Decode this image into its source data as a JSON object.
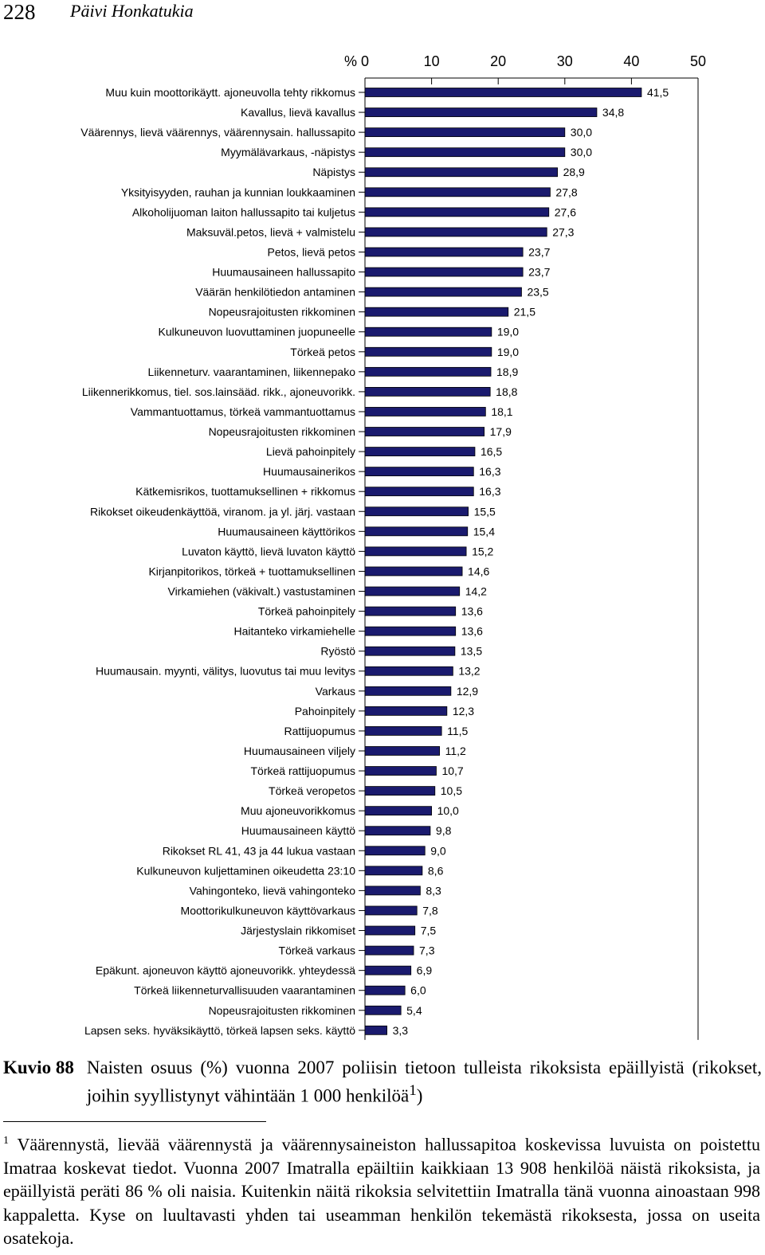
{
  "header": {
    "page_number": "228",
    "author": "Päivi Honkatukia"
  },
  "chart_data": {
    "type": "bar",
    "orientation": "horizontal",
    "unit_label": "%",
    "xlim": [
      0,
      50
    ],
    "xticks": [
      "0",
      "10",
      "20",
      "30",
      "40",
      "50"
    ],
    "bar_color": "#1a1a6e",
    "categories": [
      "Muu kuin moottorikäytt. ajoneuvolla tehty rikkomus",
      "Kavallus, lievä kavallus",
      "Väärennys, lievä väärennys, väärennysain. hallussapito",
      "Myymälävarkaus, -näpistys",
      "Näpistys",
      "Yksityisyyden, rauhan ja kunnian loukkaaminen",
      "Alkoholijuoman laiton hallussapito tai kuljetus",
      "Maksuväl.petos, lievä + valmistelu",
      "Petos, lievä petos",
      "Huumausaineen hallussapito",
      "Väärän henkilötiedon antaminen",
      "Nopeusrajoitusten rikkominen",
      "Kulkuneuvon luovuttaminen juopuneelle",
      "Törkeä petos",
      "Liikenneturv. vaarantaminen, liikennepako",
      "Liikennerikkomus, tiel. sos.lainsääd. rikk., ajoneuvorikk.",
      "Vammantuottamus, törkeä vammantuottamus",
      "Nopeusrajoitusten rikkominen",
      "Lievä pahoinpitely",
      "Huumausainerikos",
      "Kätkemisrikos, tuottamuksellinen + rikkomus",
      "Rikokset oikeudenkäyttöä, viranom. ja yl. järj. vastaan",
      "Huumausaineen käyttörikos",
      "Luvaton käyttö, lievä luvaton käyttö",
      "Kirjanpitorikos, törkeä + tuottamuksellinen",
      "Virkamiehen (väkivalt.) vastustaminen",
      "Törkeä pahoinpitely",
      "Haitanteko virkamiehelle",
      "Ryöstö",
      "Huumausain. myynti, välitys, luovutus tai muu levitys",
      "Varkaus",
      "Pahoinpitely",
      "Rattijuopumus",
      "Huumausaineen viljely",
      "Törkeä rattijuopumus",
      "Törkeä veropetos",
      "Muu ajoneuvorikkomus",
      "Huumausaineen käyttö",
      "Rikokset RL 41, 43 ja 44 lukua vastaan",
      "Kulkuneuvon kuljettaminen oikeudetta 23:10",
      "Vahingonteko, lievä vahingonteko",
      "Moottorikulkuneuvon käyttövarkaus",
      "Järjestyslain rikkomiset",
      "Törkeä varkaus",
      "Epäkunt. ajoneuvon käyttö ajoneuvorikk. yhteydessä",
      "Törkeä liikenneturvallisuuden vaarantaminen",
      "Nopeusrajoitusten rikkominen",
      "Lapsen seks. hyväksikäyttö, törkeä lapsen seks. käyttö"
    ],
    "values": [
      41.5,
      34.8,
      30.0,
      30.0,
      28.9,
      27.8,
      27.6,
      27.3,
      23.7,
      23.7,
      23.5,
      21.5,
      19.0,
      19.0,
      18.9,
      18.8,
      18.1,
      17.9,
      16.5,
      16.3,
      16.3,
      15.5,
      15.4,
      15.2,
      14.6,
      14.2,
      13.6,
      13.6,
      13.5,
      13.2,
      12.9,
      12.3,
      11.5,
      11.2,
      10.7,
      10.5,
      10.0,
      9.8,
      9.0,
      8.6,
      8.3,
      7.8,
      7.5,
      7.3,
      6.9,
      6.0,
      5.4,
      3.3
    ],
    "value_labels": [
      "41,5",
      "34,8",
      "30,0",
      "30,0",
      "28,9",
      "27,8",
      "27,6",
      "27,3",
      "23,7",
      "23,7",
      "23,5",
      "21,5",
      "19,0",
      "19,0",
      "18,9",
      "18,8",
      "18,1",
      "17,9",
      "16,5",
      "16,3",
      "16,3",
      "15,5",
      "15,4",
      "15,2",
      "14,6",
      "14,2",
      "13,6",
      "13,6",
      "13,5",
      "13,2",
      "12,9",
      "12,3",
      "11,5",
      "11,2",
      "10,7",
      "10,5",
      "10,0",
      "9,8",
      "9,0",
      "8,6",
      "8,3",
      "7,8",
      "7,5",
      "7,3",
      "6,9",
      "6,0",
      "5,4",
      "3,3"
    ]
  },
  "caption": {
    "number": "Kuvio 88",
    "text": "Naisten osuus (%) vuonna 2007 poliisin tietoon tulleista rikoksista epäillyistä (rikokset, joihin syyllistynyt vähintään 1 000 henkilöä",
    "footnote_ref": "1",
    "text_end": ")"
  },
  "footnote": {
    "marker": "1",
    "text": "Väärennystä, lievää väärennystä ja väärennysaineiston hallussapitoa koskevissa luvuista on poistettu Imatraa koskevat tiedot. Vuonna 2007 Imatralla epäiltiin kaikkiaan 13 908 henkilöä näistä rikoksista, ja epäillyistä peräti 86 % oli naisia. Kuitenkin näitä rikoksia selvitettiin Imatralla tänä vuonna ainoastaan 998 kappaletta. Kyse on luultavasti yhden tai useamman henkilön tekemästä rikoksesta, jossa on useita osatekoja."
  }
}
